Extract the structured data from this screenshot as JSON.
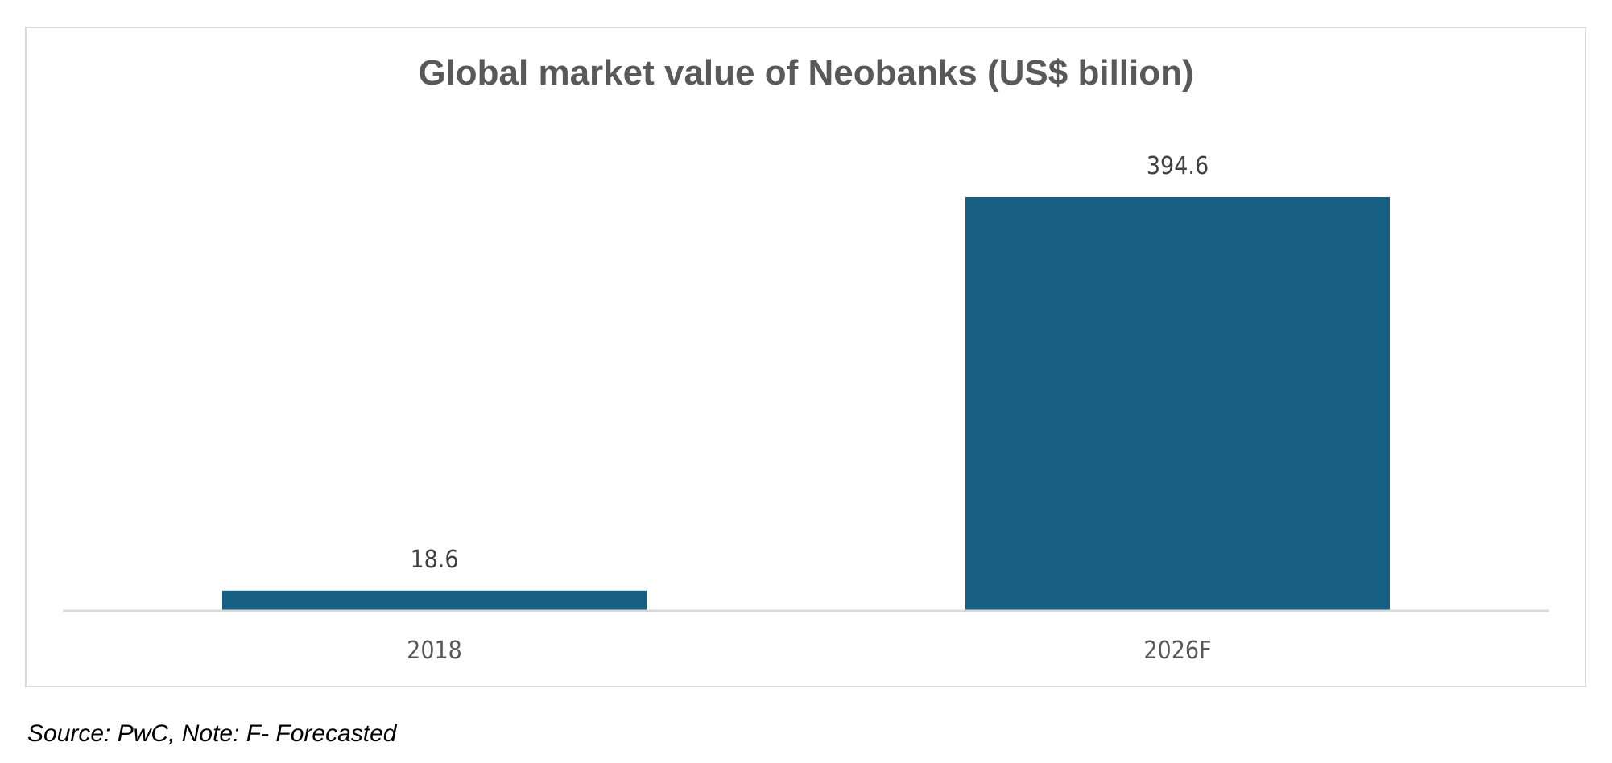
{
  "chart_data": {
    "type": "bar",
    "title": "Global market value of Neobanks (US$ billion)",
    "categories": [
      "2018",
      "2026F"
    ],
    "values": [
      18.6,
      394.6
    ],
    "data_labels": [
      "18.6",
      "394.6"
    ],
    "xlabel": "",
    "ylabel": "",
    "ylim": [
      0,
      394.6
    ],
    "grid": false,
    "y_axis_shown": false,
    "bar_color": "#175F82"
  },
  "source_note": "Source: PwC, Note: F- Forecasted"
}
